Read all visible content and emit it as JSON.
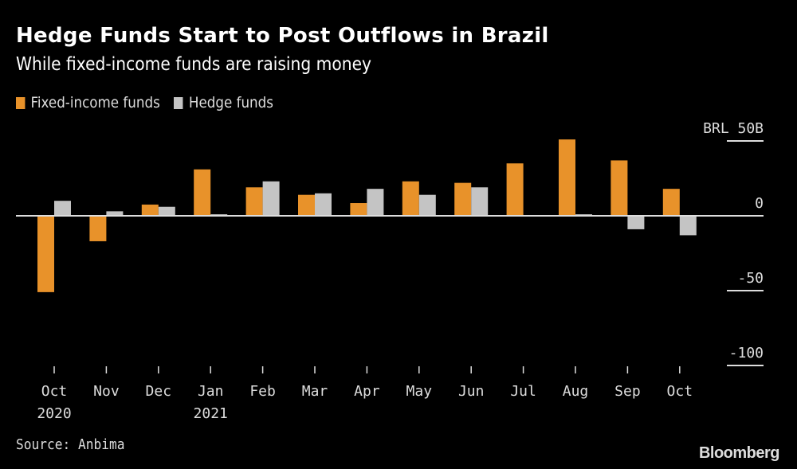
{
  "title": "Hedge Funds Start to Post Outflows in Brazil",
  "subtitle": "While fixed-income funds are raising money",
  "source": "Source: Anbima",
  "brand": "Bloomberg",
  "chart_data": {
    "type": "bar",
    "title": "Hedge Funds Start to Post Outflows in Brazil",
    "subtitle": "While fixed-income funds are raising money",
    "categories": [
      "Oct",
      "Nov",
      "Dec",
      "Jan",
      "Feb",
      "Mar",
      "Apr",
      "May",
      "Jun",
      "Jul",
      "Aug",
      "Sep",
      "Oct"
    ],
    "year_labels": [
      "2020",
      "",
      "",
      "2021",
      "",
      "",
      "",
      "",
      "",
      "",
      "",
      "",
      ""
    ],
    "series": [
      {
        "name": "Fixed-income funds",
        "color": "#e8922a",
        "values": [
          -51,
          -17,
          7.5,
          31,
          19,
          14,
          8.5,
          23,
          22,
          35,
          51,
          37,
          18
        ]
      },
      {
        "name": "Hedge funds",
        "color": "#c4c4c4",
        "values": [
          10,
          3,
          6,
          1,
          23,
          15,
          18,
          14,
          19,
          0.3,
          1,
          -9,
          -13
        ]
      }
    ],
    "y_ticks": [
      {
        "value": 50,
        "label": "BRL 50B"
      },
      {
        "value": 0,
        "label": "0"
      },
      {
        "value": -50,
        "label": "-50"
      },
      {
        "value": -100,
        "label": "-100"
      }
    ],
    "ylim": [
      -100,
      50
    ],
    "ylabel": "",
    "xlabel": "",
    "legend": "top-left",
    "grid": false
  }
}
